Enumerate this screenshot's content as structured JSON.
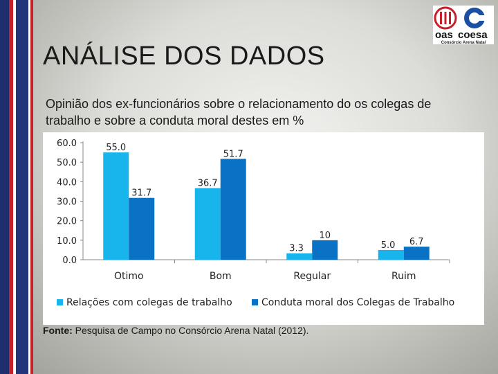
{
  "slide": {
    "title": "ANÁLISE DOS  DADOS",
    "subtitle": "Opinião dos ex-funcionários sobre o relacionamento do os colegas de trabalho e sobre a conduta moral destes em %",
    "source_label": "Fonte:",
    "source_text": " Pesquisa de Campo no Consórcio Arena Natal (2012)."
  },
  "logo": {
    "left_text": "oas",
    "right_text": "coesa",
    "subtext": "Consórcio Arena Natal"
  },
  "colors": {
    "series1": "#18b4ec",
    "series2": "#0a72c4",
    "brand_red": "#c51f2a",
    "brand_blue": "#1f2f6e"
  },
  "chart_data": {
    "type": "bar",
    "title": "Opinião dos ex-funcionários sobre o relacionamento do os colegas de trabalho e sobre a conduta moral destes em %",
    "categories": [
      "Otimo",
      "Bom",
      "Regular",
      "Ruim"
    ],
    "series": [
      {
        "name": "Relações com colegas de trabalho",
        "values": [
          55.0,
          36.7,
          3.3,
          5.0
        ],
        "labels": [
          "55.0",
          "36.7",
          "3.3",
          "5.0"
        ]
      },
      {
        "name": "Conduta moral dos Colegas de Trabalho",
        "values": [
          31.7,
          51.7,
          10,
          6.7
        ],
        "labels": [
          "31.7",
          "51.7",
          "10",
          "6.7"
        ]
      }
    ],
    "ylim": [
      0,
      60
    ],
    "yticks": [
      "0.0",
      "10.0",
      "20.0",
      "30.0",
      "40.0",
      "50.0",
      "60.0"
    ],
    "legend_position": "bottom",
    "xlabel": "",
    "ylabel": ""
  }
}
